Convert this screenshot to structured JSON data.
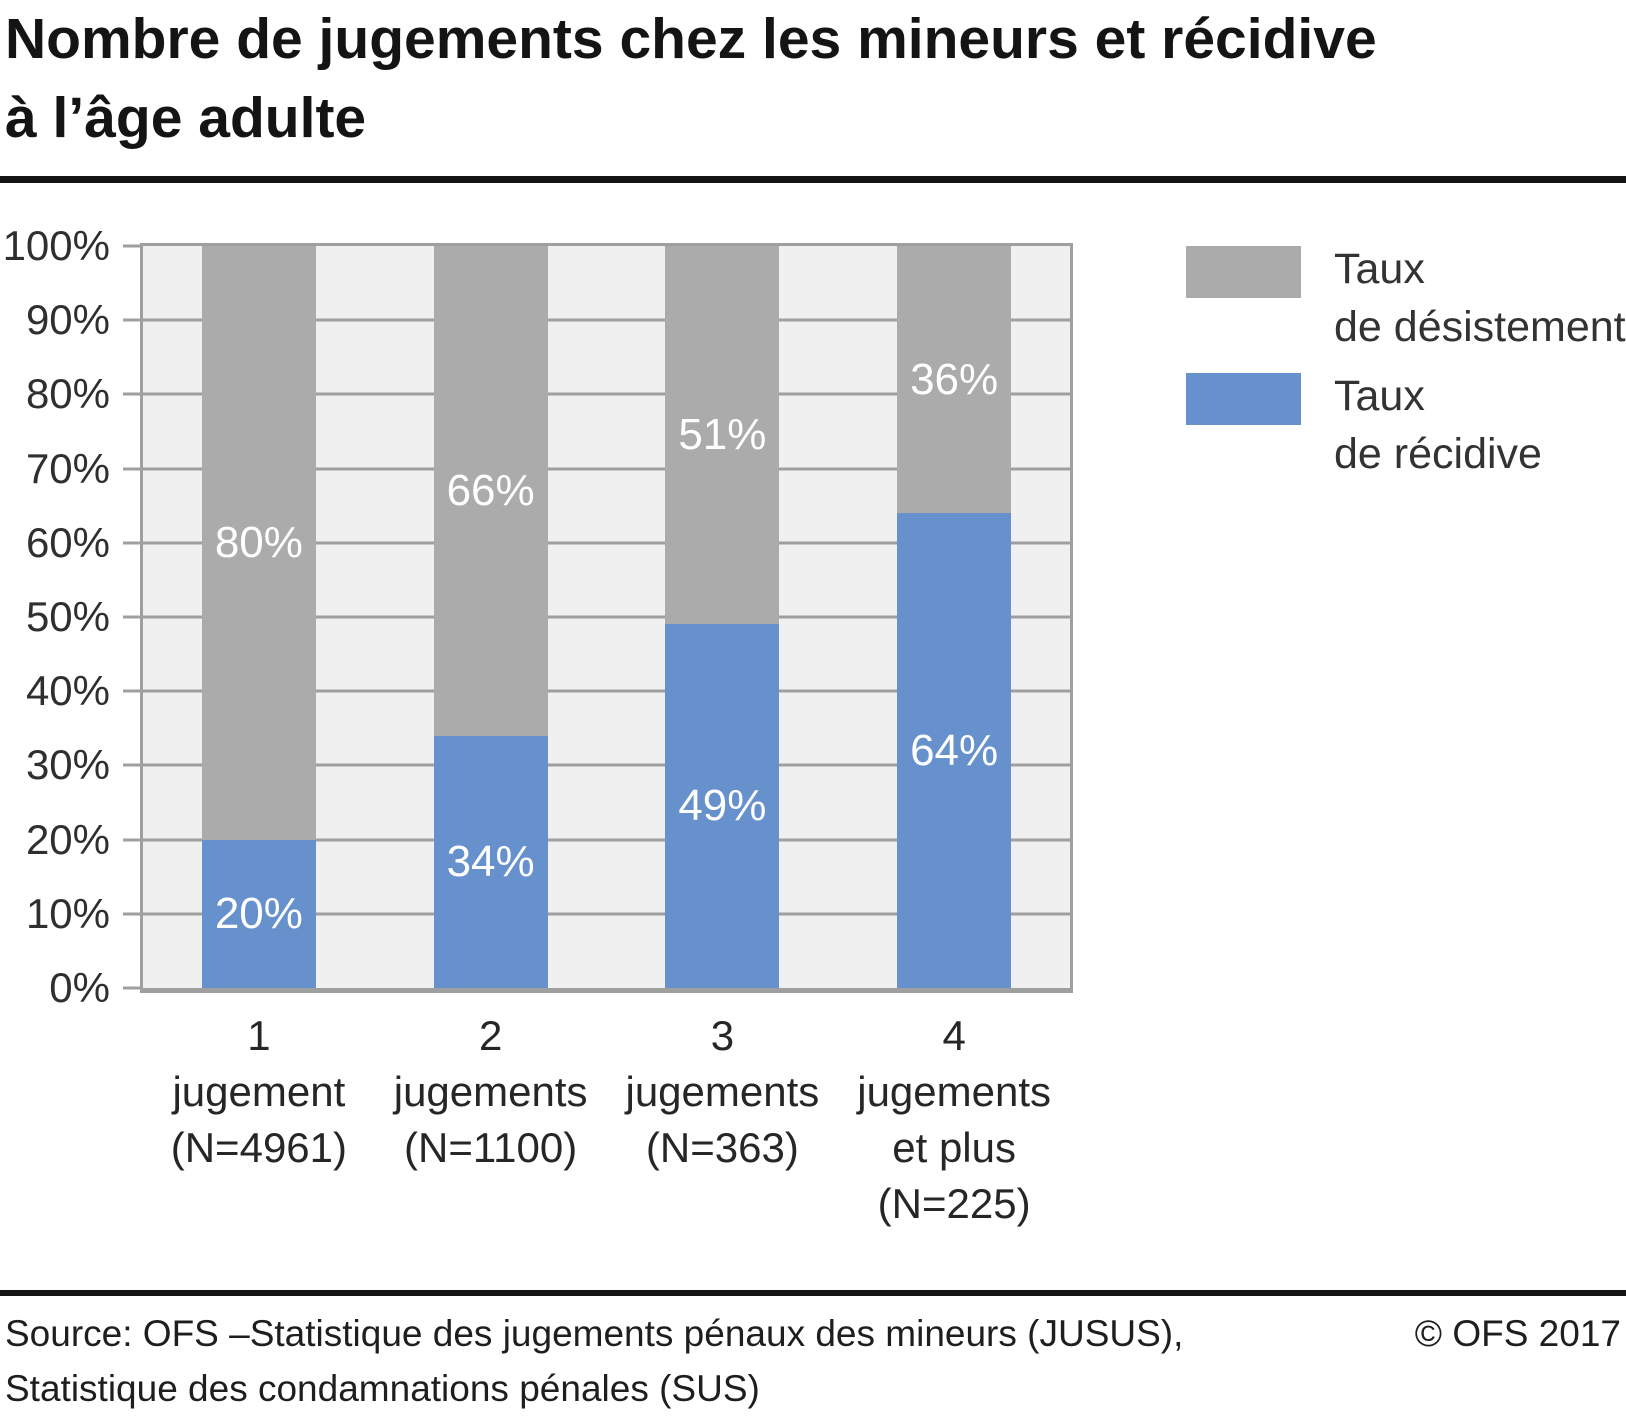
{
  "title": "Nombre de jugements chez les mineurs et récidive\nà l’âge adulte",
  "footer": {
    "source": "Source: OFS –Statistique des jugements pénaux des mineurs (JUSUS),\nStatistique des condamnations pénales (SUS)",
    "copyright": "© OFS 2017"
  },
  "colors": {
    "recidive_blue": "#6691cd",
    "desistement_gray": "#ababab",
    "plot_background": "#f0f0f0",
    "gridline": "#9f9f9f",
    "divider_black": "#141414"
  },
  "chart_data": {
    "type": "bar",
    "stacked": true,
    "title": "Nombre de jugements chez les mineurs et récidive à l’âge adulte",
    "categories": [
      "1 jugement (N=4961)",
      "2 jugements (N=1100)",
      "3 jugements (N=363)",
      "4 jugements et plus (N=225)"
    ],
    "category_lines": [
      [
        "1",
        "jugement",
        "(N=4961)"
      ],
      [
        "2",
        "jugements",
        "(N=1100)"
      ],
      [
        "3",
        "jugements",
        "(N=363)"
      ],
      [
        "4",
        "jugements",
        "et plus",
        "(N=225)"
      ]
    ],
    "series": [
      {
        "name": "Taux de désistement",
        "legend_label": "Taux\nde désistement",
        "color": "#ababab",
        "values": [
          80,
          66,
          51,
          36
        ]
      },
      {
        "name": "Taux de récidive",
        "legend_label": "Taux\nde récidive",
        "color": "#6691cd",
        "values": [
          20,
          34,
          49,
          64
        ]
      }
    ],
    "value_suffix": "%",
    "ylim": [
      0,
      100
    ],
    "yticks": [
      "0%",
      "10%",
      "20%",
      "30%",
      "40%",
      "50%",
      "60%",
      "70%",
      "80%",
      "90%",
      "100%"
    ],
    "grid": "horizontal",
    "legend_position": "right",
    "plot_background": "#f0f0f0",
    "gridline_color": "#9f9f9f"
  }
}
